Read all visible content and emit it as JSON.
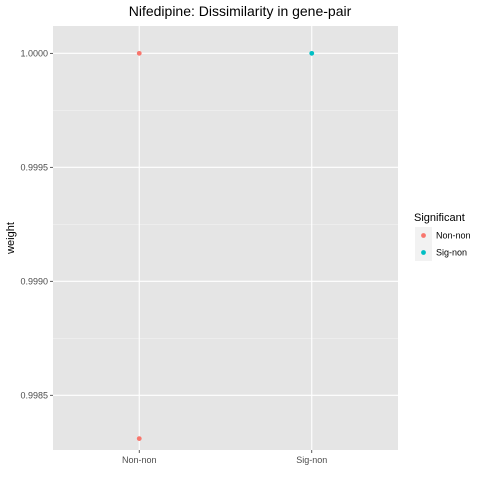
{
  "chart_data": {
    "type": "scatter",
    "title": "Nifedipine: Dissimilarity in gene-pair",
    "xlabel": "",
    "ylabel": "weight",
    "categories": [
      "Non-non",
      "Sig-non"
    ],
    "ylim": [
      0.99826,
      1.00012
    ],
    "yticks": [
      0.9985,
      0.999,
      0.9995,
      1.0
    ],
    "ytick_labels": [
      "0.9985",
      "0.9990",
      "0.9995",
      "1.0000"
    ],
    "grid": true,
    "legend": {
      "title": "Significant",
      "placement": "right",
      "entries": [
        {
          "label": "Non-non",
          "color": "#F8766D"
        },
        {
          "label": "Sig-non",
          "color": "#00BFC4"
        }
      ]
    },
    "points": [
      {
        "x": "Non-non",
        "y": 1.0,
        "group": "Non-non"
      },
      {
        "x": "Non-non",
        "y": 0.99831,
        "group": "Non-non"
      },
      {
        "x": "Sig-non",
        "y": 1.0,
        "group": "Sig-non"
      }
    ],
    "colors": {
      "panel": "#E5E5E5",
      "grid_major": "#FFFFFF",
      "grid_minor": "#F2F2F2",
      "legend_key_bg": "#F2F2F2"
    }
  }
}
